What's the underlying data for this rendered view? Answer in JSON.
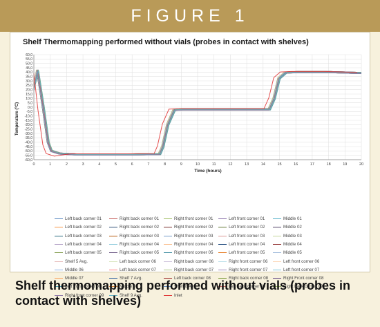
{
  "header": {
    "label": "FIGURE 1"
  },
  "caption": "Shelf thermomapping performed without vials (probes in contact with shelves)",
  "chart_data": {
    "type": "line",
    "title": "Shelf Thermomapping  performed without vials (probes in contact with shelves)",
    "xlabel": "Time (hours)",
    "ylabel": "Temperature (°C)",
    "xlim": [
      0,
      20
    ],
    "ylim": [
      -60,
      60
    ],
    "xticks": [
      0,
      1,
      2,
      3,
      4,
      5,
      6,
      7,
      8,
      9,
      10,
      11,
      12,
      13,
      14,
      15,
      16,
      17,
      18,
      19,
      20
    ],
    "yticks": [
      "60,0",
      "55,0",
      "50,0",
      "45,0",
      "40,0",
      "35,0",
      "30,0",
      "25,0",
      "20,0",
      "15,0",
      "10,0",
      "5,0",
      "0,0",
      "-5,0",
      "-10,0",
      "-15,0",
      "-20,0",
      "-25,0",
      "-30,0",
      "-35,0",
      "-40,0",
      "-45,0",
      "-50,0",
      "-55,0",
      "-60,0"
    ],
    "ytick_values": [
      60,
      55,
      50,
      45,
      40,
      35,
      30,
      25,
      20,
      15,
      10,
      5,
      0,
      -5,
      -10,
      -15,
      -20,
      -25,
      -30,
      -35,
      -40,
      -45,
      -50,
      -55,
      -60
    ],
    "grid": true,
    "legend_position": "bottom",
    "profile": {
      "x": [
        0,
        0.15,
        0.5,
        0.8,
        1.0,
        1.5,
        2.5,
        4,
        6,
        7.6,
        7.8,
        8.1,
        8.5,
        9,
        10,
        12,
        14.3,
        14.6,
        14.9,
        15.3,
        16,
        18,
        20
      ],
      "y": [
        20,
        42,
        0,
        -40,
        -50,
        -53,
        -54,
        -54,
        -54,
        -53.5,
        -45,
        -20,
        -3,
        -2.5,
        -2.5,
        -2.5,
        -2.5,
        10,
        33,
        39.5,
        40,
        40,
        39
      ]
    },
    "series": [
      {
        "name": "Left back corner 01",
        "color": "#4f81bd",
        "dx": 0.02
      },
      {
        "name": "Right back corner 01",
        "color": "#c0504d",
        "dx": 0.04
      },
      {
        "name": "Right front corner 01",
        "color": "#9bbb59",
        "dx": 0.0
      },
      {
        "name": "Left front corner 01",
        "color": "#8064a2",
        "dx": 0.06
      },
      {
        "name": "Middle 01",
        "color": "#4bacc6",
        "dx": 0.03
      },
      {
        "name": "Left back corner 02",
        "color": "#f79646",
        "dx": 0.08
      },
      {
        "name": "Right back corner 02",
        "color": "#2c4d75",
        "dx": 0.01
      },
      {
        "name": "Right front corner 02",
        "color": "#772c2a",
        "dx": 0.05
      },
      {
        "name": "Left front corner 02",
        "color": "#5f7530",
        "dx": 0.07
      },
      {
        "name": "Middle 02",
        "color": "#4d3b62",
        "dx": 0.02
      },
      {
        "name": "Left back corner 03",
        "color": "#276a7c",
        "dx": 0.09
      },
      {
        "name": "Right back corner 03",
        "color": "#b65708",
        "dx": 0.04
      },
      {
        "name": "Right front corner 03",
        "color": "#729aca",
        "dx": 0.06
      },
      {
        "name": "Left front corner 03",
        "color": "#d99694",
        "dx": 0.03
      },
      {
        "name": "Middle 03",
        "color": "#c3d69b",
        "dx": 0.1
      },
      {
        "name": "Left back corner 04",
        "color": "#b3a2c7",
        "dx": 0.05
      },
      {
        "name": "Right back corner 04",
        "color": "#93cddd",
        "dx": 0.08
      },
      {
        "name": "Right front corner 04",
        "color": "#fac090",
        "dx": 0.02
      },
      {
        "name": "Left front corner 04",
        "color": "#1f497d",
        "dx": 0.11
      },
      {
        "name": "Middle 04",
        "color": "#943634",
        "dx": 0.07
      },
      {
        "name": "Left back corner 05",
        "color": "#76923c",
        "dx": 0.04
      },
      {
        "name": "Right back corner 05",
        "color": "#5f497a",
        "dx": 0.09
      },
      {
        "name": "Right front corner 05",
        "color": "#31859b",
        "dx": 0.06
      },
      {
        "name": "Left front corner 05",
        "color": "#e36c09",
        "dx": 0.12
      },
      {
        "name": "Middle 05",
        "color": "#95b3d7",
        "dx": 0.03
      },
      {
        "name": "Shelf 5 Avg.",
        "color": "#e6b9b8",
        "dx": 0.06
      },
      {
        "name": "Left back corner 06",
        "color": "#d7e4bc",
        "dx": 0.1
      },
      {
        "name": "Right back corner 06",
        "color": "#ccc0da",
        "dx": 0.05
      },
      {
        "name": "Right front corner 06",
        "color": "#b7dee8",
        "dx": 0.08
      },
      {
        "name": "Left front corner 06",
        "color": "#fcd5b4",
        "dx": 0.13
      },
      {
        "name": "Middle 06",
        "color": "#8eb4e3",
        "dx": 0.04
      },
      {
        "name": "Left back corner 07",
        "color": "#ff7f7f",
        "dx": 0.11
      },
      {
        "name": "Right back corner 07",
        "color": "#a9c47f",
        "dx": 0.07
      },
      {
        "name": "Right front corner 07",
        "color": "#9d87b8",
        "dx": 0.09
      },
      {
        "name": "Left front corner 07",
        "color": "#7fc5d8",
        "dx": 0.05
      },
      {
        "name": "Middle 07",
        "color": "#f9ab6b",
        "dx": 0.14
      },
      {
        "name": "Shelf 7 Avg.",
        "color": "#3d6aa3",
        "dx": 0.08
      },
      {
        "name": "Left back corner 08",
        "color": "#a33a38",
        "dx": 0.12
      },
      {
        "name": "Right back corner 08",
        "color": "#7e9d3f",
        "dx": 0.06
      },
      {
        "name": "Right Front corner 08",
        "color": "#6a5289",
        "dx": 0.1
      },
      {
        "name": "Left front corner 08",
        "color": "#3c94ab",
        "dx": 0.15
      },
      {
        "name": "Middle 08",
        "color": "#d67a2b",
        "dx": 0.07
      },
      {
        "name": "Shelf 8 Avg.",
        "color": "#5a86c0",
        "dx": 0.11
      },
      {
        "name": "Left back corner 09",
        "color": "#cc6664",
        "dx": 0.09
      },
      {
        "name": "Right back corner 09",
        "color": "#94b45d",
        "dx": 0.13
      },
      {
        "name": "Right front corner 09",
        "color": "#8a74a8",
        "dx": 0.06
      },
      {
        "name": "Shelf 9 Avg.",
        "color": "#5fb3c9",
        "dx": 0.12
      },
      {
        "name": "Inlet",
        "color": "#e03030",
        "dx": -0.25
      }
    ]
  }
}
